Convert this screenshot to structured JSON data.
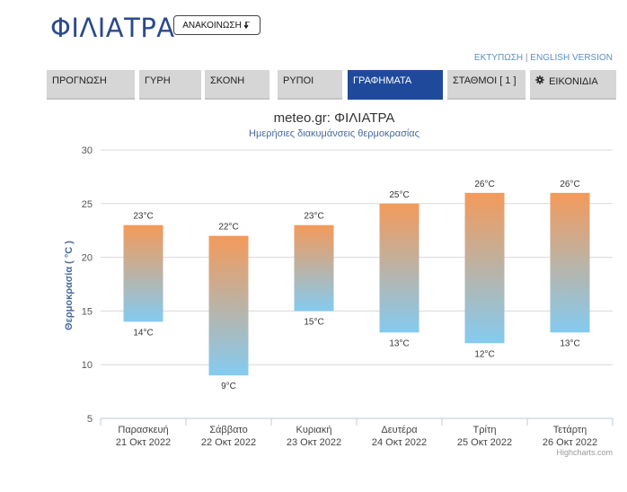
{
  "header": {
    "title": "ΦΙΛΙΑΤΡΑ",
    "announce_label": "ΑΝΑΚΟΙΝΩΣΗ",
    "announce_icon": "arrow-down-icon",
    "print_link": "ΕΚΤΥΠΩΣΗ",
    "separator": "|",
    "english_link": "ENGLISH VERSION"
  },
  "tabs": [
    {
      "label": "ΠΡΟΓΝΩΣΗ",
      "active": false
    },
    {
      "label": "ΓΥΡΗ",
      "active": false
    },
    {
      "label": "ΣΚΟΝΗ",
      "active": false
    },
    {
      "label": "ΡΥΠΟΙ",
      "active": false
    },
    {
      "label": "ΓΡΑΦΗΜΑΤΑ",
      "active": true
    },
    {
      "label": "ΣΤΑΘΜΟΙ [ 1 ]",
      "active": false
    },
    {
      "label": "ΕΙΚΟΝΙΔΙΑ",
      "active": false,
      "icon": "gear-icon"
    }
  ],
  "colors": {
    "accent": "#1f4a9c",
    "title": "#2b4a8b",
    "bar_top": "#f39a5a",
    "bar_bottom": "#84cbf0",
    "subtitle": "#4a6aa0"
  },
  "chart_data": {
    "type": "columnrange",
    "title": "meteo.gr: ΦΙΛΙΑΤΡΑ",
    "subtitle": "Ημερήσιες διακυμάνσεις θερμοκρασίας",
    "ylabel": "Θερμοκρασία ( °C )",
    "ylim": [
      5,
      30
    ],
    "yticks": [
      5,
      10,
      15,
      20,
      25,
      30
    ],
    "grid": true,
    "categories": [
      {
        "day": "Παρασκευή",
        "date": "21 Οκτ 2022"
      },
      {
        "day": "Σάββατο",
        "date": "22 Οκτ 2022"
      },
      {
        "day": "Κυριακή",
        "date": "23 Οκτ 2022"
      },
      {
        "day": "Δευτέρα",
        "date": "24 Οκτ 2022"
      },
      {
        "day": "Τρίτη",
        "date": "25 Οκτ 2022"
      },
      {
        "day": "Τετάρτη",
        "date": "26 Οκτ 2022"
      }
    ],
    "min": [
      14,
      9,
      15,
      13,
      12,
      13
    ],
    "max": [
      23,
      22,
      23,
      25,
      26,
      26
    ],
    "unit": "°C",
    "credits": "Highcharts.com"
  }
}
